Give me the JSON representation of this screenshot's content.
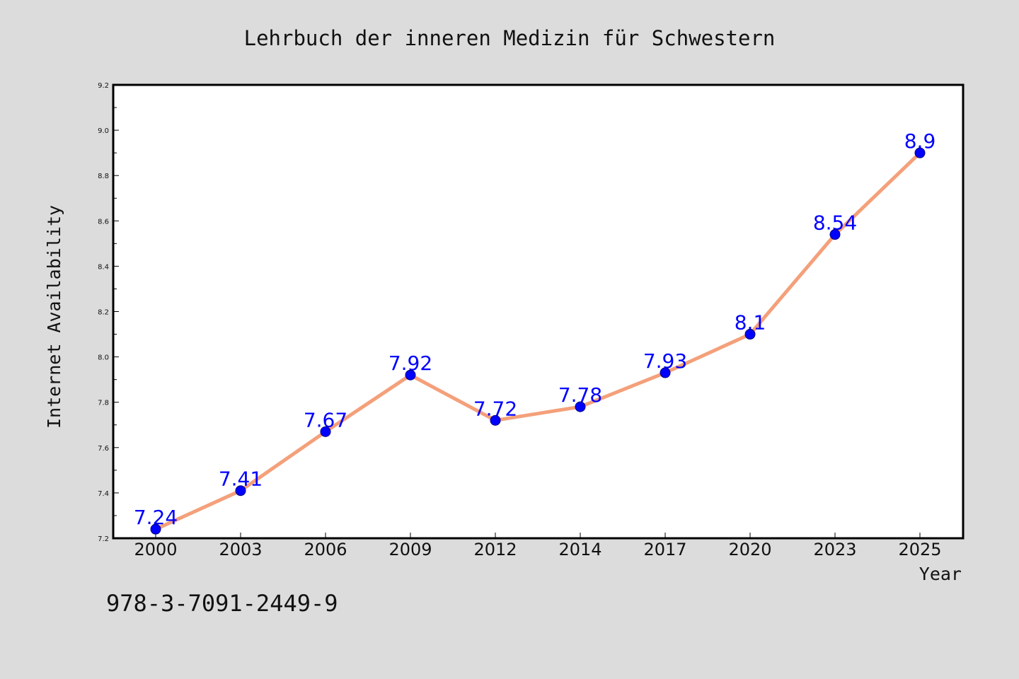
{
  "chart_data": {
    "type": "line",
    "title": "Lehrbuch der inneren Medizin für Schwestern",
    "xlabel": "Year",
    "ylabel": "Internet Availability",
    "categories": [
      "2000",
      "2003",
      "2006",
      "2009",
      "2012",
      "2014",
      "2017",
      "2020",
      "2023",
      "2025"
    ],
    "series": [
      {
        "values": [
          7.24,
          7.41,
          7.67,
          7.92,
          7.72,
          7.78,
          7.93,
          8.1,
          8.54,
          8.9
        ],
        "labels": [
          "7.24",
          "7.41",
          "7.67",
          "7.92",
          "7.72",
          "7.78",
          "7.93",
          "8.1",
          "8.54",
          "8.9"
        ]
      }
    ],
    "ylim": [
      7.2,
      9.2
    ],
    "yticks": [
      "7.2",
      "7.4",
      "7.6",
      "7.8",
      "8.0",
      "8.2",
      "8.4",
      "8.6",
      "8.8",
      "9.0",
      "9.2"
    ],
    "grid": false,
    "legend": "none",
    "colors": {
      "line": "#f4a07a",
      "marker": "#0000ff",
      "marker_edge": "#000080",
      "data_label": "#0000ff",
      "background": "#dcdcdc",
      "plot_background": "#ffffff"
    }
  },
  "footer": {
    "isbn": "978-3-7091-2449-9"
  }
}
